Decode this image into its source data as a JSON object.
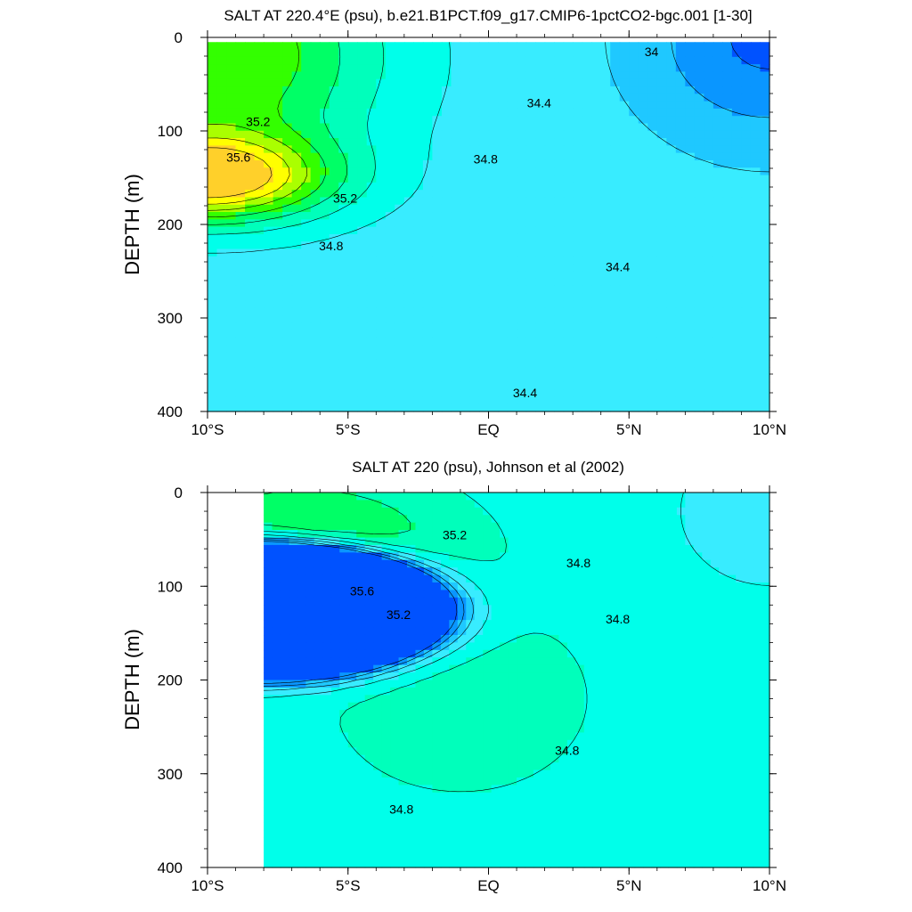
{
  "chart_data": [
    {
      "type": "heatmap",
      "title": "SALT AT 220.4°E (psu), b.e21.B1PCT.f09_g17.CMIP6-1pctCO2-bgc.001 [1-30]",
      "xlabel": "",
      "ylabel": "DEPTH (m)",
      "xlim": [
        -10,
        10
      ],
      "ylim": [
        0,
        400
      ],
      "y_inverted": true,
      "x_ticks": [
        {
          "v": -10,
          "label": "10°S"
        },
        {
          "v": -5,
          "label": "5°S"
        },
        {
          "v": 0,
          "label": "EQ"
        },
        {
          "v": 5,
          "label": "5°N"
        },
        {
          "v": 10,
          "label": "10°N"
        }
      ],
      "y_ticks": [
        0,
        100,
        200,
        300,
        400
      ],
      "data_x_range": [
        -10,
        10
      ],
      "data_depth_range": [
        5,
        400
      ],
      "field": {
        "background": 34.5,
        "features": [
          {
            "name": "subsurface-salinity-max",
            "peak": 35.9,
            "lat": -10,
            "depth": 150,
            "lat_scale": 4.2,
            "depth_scale": 45
          },
          {
            "name": "upper-salty-tongue",
            "peak": 0.9,
            "lat": -9.5,
            "depth": 20,
            "lat_scale": 5.5,
            "depth_scale": 120
          },
          {
            "name": "northern-fresh-surface",
            "peak": -0.55,
            "lat": 10,
            "depth": 0,
            "lat_scale": 4.5,
            "depth_scale": 110
          }
        ]
      },
      "contour_levels": [
        33.8,
        34.0,
        34.2,
        34.4,
        34.6,
        34.8,
        35.0,
        35.2,
        35.4,
        35.6,
        35.8
      ],
      "contour_labels": [
        {
          "text": "35.2",
          "lat": -8.2,
          "depth": 90
        },
        {
          "text": "35.6",
          "lat": -8.9,
          "depth": 128
        },
        {
          "text": "35.2",
          "lat": -5.1,
          "depth": 172
        },
        {
          "text": "34.8",
          "lat": -5.6,
          "depth": 223
        },
        {
          "text": "34.8",
          "lat": -0.1,
          "depth": 130
        },
        {
          "text": "34.4",
          "lat": 1.8,
          "depth": 70
        },
        {
          "text": "34",
          "lat": 5.8,
          "depth": 15
        },
        {
          "text": "34.4",
          "lat": 4.6,
          "depth": 245
        },
        {
          "text": "34.4",
          "lat": 1.3,
          "depth": 380
        }
      ]
    },
    {
      "type": "heatmap",
      "title": "SALT AT 220 (psu), Johnson et al (2002)",
      "xlabel": "",
      "ylabel": "DEPTH (m)",
      "xlim": [
        -10,
        10
      ],
      "ylim": [
        0,
        400
      ],
      "y_inverted": true,
      "x_ticks": [
        {
          "v": -10,
          "label": "10°S"
        },
        {
          "v": -5,
          "label": "5°S"
        },
        {
          "v": 0,
          "label": "EQ"
        },
        {
          "v": 5,
          "label": "5°N"
        },
        {
          "v": 10,
          "label": "10°N"
        }
      ],
      "y_ticks": [
        0,
        100,
        200,
        300,
        400
      ],
      "data_x_range": [
        -8,
        10
      ],
      "data_depth_range": [
        0,
        400
      ],
      "field": {
        "background": 34.72,
        "features": [
          {
            "name": "subsurface-salinity-max",
            "peak": 1.05,
            "lat": -8,
            "depth": 125,
            "lat_scale": 3.6,
            "depth_scale": 40
          },
          {
            "name": "upper-salty-tongue",
            "peak": 0.62,
            "lat": -6.5,
            "depth": 60,
            "lat_scale": 4.8,
            "depth_scale": 70
          },
          {
            "name": "mid-depth-high",
            "peak": 0.18,
            "lat": -1,
            "depth": 220,
            "lat_scale": 5,
            "depth_scale": 110
          },
          {
            "name": "northern-fresh-surface",
            "peak": -0.32,
            "lat": 10,
            "depth": 20,
            "lat_scale": 3.2,
            "depth_scale": 80
          }
        ]
      },
      "contour_levels": [
        34.0,
        34.2,
        34.4,
        34.6,
        34.8,
        35.0,
        35.2,
        35.4,
        35.6,
        35.8
      ],
      "contour_labels": [
        {
          "text": "35.2",
          "lat": -1.2,
          "depth": 45
        },
        {
          "text": "35.6",
          "lat": -4.5,
          "depth": 105
        },
        {
          "text": "35.2",
          "lat": -3.2,
          "depth": 130
        },
        {
          "text": "34.8",
          "lat": 3.2,
          "depth": 75
        },
        {
          "text": "34.8",
          "lat": 4.6,
          "depth": 135
        },
        {
          "text": "34.8",
          "lat": 2.8,
          "depth": 275
        },
        {
          "text": "34.8",
          "lat": -3.1,
          "depth": 338
        }
      ]
    }
  ]
}
